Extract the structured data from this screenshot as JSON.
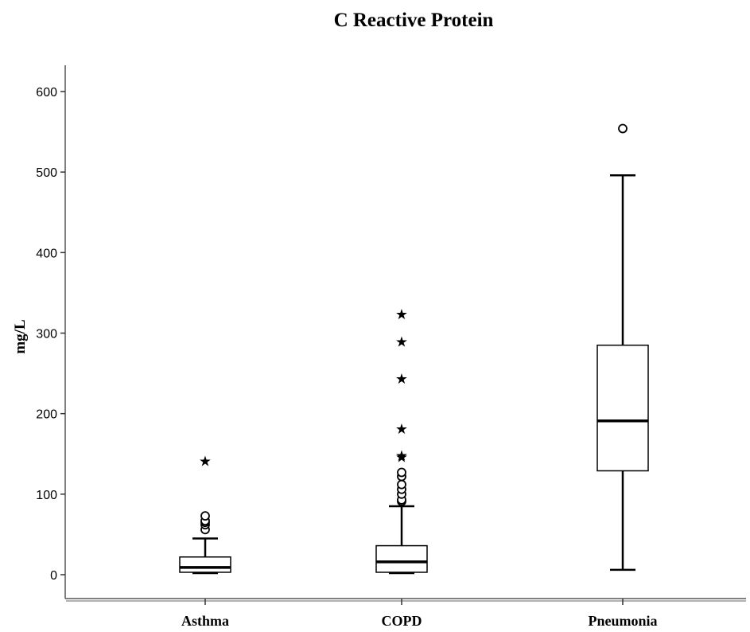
{
  "chart_data": {
    "type": "boxplot",
    "title": "C Reactive Protein",
    "ylabel": "mg/L",
    "xlabel": "",
    "ylim": [
      0,
      620
    ],
    "yticks": [
      "0",
      "100",
      "200",
      "300",
      "400",
      "500",
      "600"
    ],
    "categories": [
      "Asthma",
      "COPD",
      "Pneumonia"
    ],
    "boxes": [
      {
        "category": "Asthma",
        "min": 2,
        "q1": 3,
        "median": 9,
        "q3": 22,
        "max": 45,
        "outliers": [
          56,
          62,
          65,
          67,
          73
        ],
        "extremes": [
          142
        ]
      },
      {
        "category": "COPD",
        "min": 2,
        "q1": 3,
        "median": 16,
        "q3": 36,
        "max": 85,
        "outliers": [
          91,
          93,
          100,
          106,
          112,
          122,
          127
        ],
        "extremes": [
          147,
          149,
          182,
          244,
          290,
          324
        ]
      },
      {
        "category": "Pneumonia",
        "min": 6,
        "q1": 129,
        "median": 191,
        "q3": 285,
        "max": 496,
        "outliers": [
          554
        ],
        "extremes": []
      }
    ],
    "grid": false,
    "legend": "none"
  }
}
